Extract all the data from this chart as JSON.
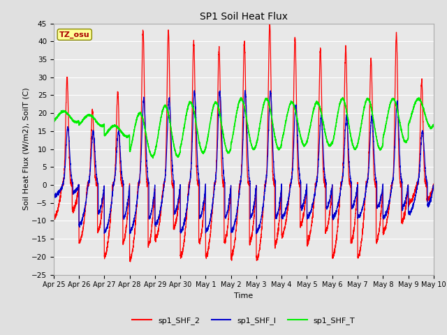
{
  "title": "SP1 Soil Heat Flux",
  "xlabel": "Time",
  "ylabel": "Soil Heat Flux (W/m2), SoilT (C)",
  "ylim": [
    -25,
    45
  ],
  "yticks": [
    -25,
    -20,
    -15,
    -10,
    -5,
    0,
    5,
    10,
    15,
    20,
    25,
    30,
    35,
    40,
    45
  ],
  "fig_bg_color": "#e0e0e0",
  "plot_bg_color": "#e8e8e8",
  "line_colors": {
    "shf2": "#ff0000",
    "shf1": "#0000cc",
    "shft": "#00ee00"
  },
  "line_widths": {
    "shf2": 0.9,
    "shf1": 0.9,
    "shft": 1.2
  },
  "legend_labels": [
    "sp1_SHF_2",
    "sp1_SHF_l",
    "sp1_SHF_T"
  ],
  "tz_label": "TZ_osu",
  "tz_box_color": "#ffff99",
  "tz_text_color": "#aa0000",
  "tick_labels": [
    "Apr 25",
    "Apr 26",
    "Apr 27",
    "Apr 28",
    "Apr 29",
    "Apr 30",
    "May 1",
    "May 2",
    "May 3",
    "May 4",
    "May 5",
    "May 6",
    "May 7",
    "May 8",
    "May 9",
    "May 10"
  ],
  "tick_positions": [
    0,
    1,
    2,
    3,
    4,
    5,
    6,
    7,
    8,
    9,
    10,
    11,
    12,
    13,
    14,
    15
  ],
  "n_days": 15,
  "shf2_peak_amps": [
    30,
    21,
    26,
    43,
    43,
    40,
    38,
    40,
    45,
    41,
    38,
    38,
    35,
    42,
    29
  ],
  "shf2_night_mins": [
    -9,
    -16,
    -20,
    -21,
    -15,
    -20,
    -20,
    -20,
    -21,
    -14,
    -16,
    -20,
    -20,
    -13,
    -5
  ],
  "shf1_peak_amps": [
    16,
    15,
    15,
    24,
    24,
    26,
    26,
    26,
    26,
    22,
    19,
    19,
    19,
    23,
    15
  ],
  "shf1_night_mins": [
    -3,
    -11,
    -13,
    -13,
    -11,
    -13,
    -13,
    -13,
    -13,
    -9,
    -9,
    -9,
    -9,
    -9,
    -8
  ],
  "shft_base_temps": [
    19,
    18,
    15,
    14,
    15,
    16,
    16,
    17,
    17,
    17,
    17,
    17,
    17,
    18,
    20
  ],
  "shft_daily_amps": [
    1.5,
    1.5,
    1.5,
    6,
    7,
    7,
    7,
    7,
    7,
    6,
    6,
    7,
    7,
    6,
    4
  ]
}
